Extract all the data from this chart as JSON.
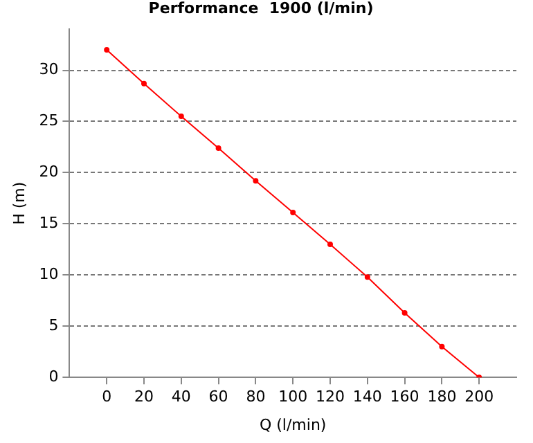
{
  "chart_data": {
    "type": "line",
    "title": "Performance  1900 (l/min)",
    "xlabel": "Q (l/min)",
    "ylabel": "H (m)",
    "x": [
      0,
      20,
      40,
      60,
      80,
      100,
      120,
      140,
      160,
      180,
      200
    ],
    "series": [
      {
        "color": "#ff0000",
        "values": [
          32,
          28.7,
          25.5,
          22.4,
          19.2,
          16.1,
          13.0,
          9.8,
          6.3,
          3.0,
          0
        ]
      }
    ],
    "xlim": [
      -20,
      220
    ],
    "xticks": [
      0,
      20,
      40,
      60,
      80,
      100,
      120,
      140,
      160,
      180,
      200
    ],
    "ylim": [
      0,
      34
    ],
    "yticks": [
      0,
      5,
      10,
      15,
      20,
      25,
      30
    ],
    "grid": "y",
    "legend": false,
    "marker": "circle",
    "line_style": "solid"
  }
}
